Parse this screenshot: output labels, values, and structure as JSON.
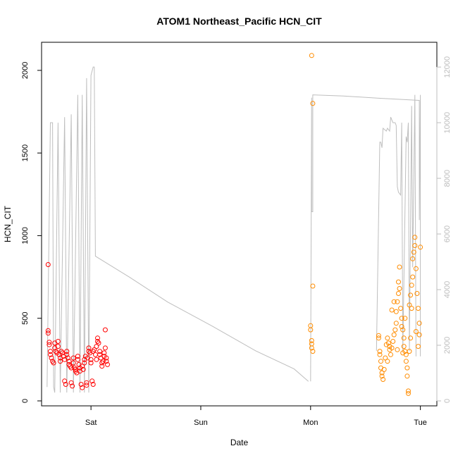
{
  "chart_data": {
    "type": "scatter",
    "title": "ATOM1 Northeast_Pacific HCN_CIT",
    "xlabel": "Date",
    "ylabel": "HCN_CIT",
    "x_ticks": [
      {
        "label": "Sat",
        "value": 1.0
      },
      {
        "label": "Sun",
        "value": 2.0
      },
      {
        "label": "Mon",
        "value": 3.0
      },
      {
        "label": "Tue",
        "value": 4.0
      }
    ],
    "xlim": [
      0.55,
      4.15
    ],
    "y_ticks": [
      0,
      500,
      1000,
      1500,
      2000
    ],
    "ylim": [
      -30,
      2170
    ],
    "y2_ticks": [
      0,
      2000,
      4000,
      6000,
      8000,
      10000,
      12000
    ],
    "y2lim": [
      -178,
      12890
    ],
    "grid": false,
    "colors": {
      "series1": "#ff0000",
      "series2": "#ff8c00",
      "secondary_line": "#bebebe",
      "right_axis": "#bdbdbd"
    },
    "series": [
      {
        "color": "#ff0000",
        "points": [
          [
            0.61,
            825
          ],
          [
            0.61,
            425
          ],
          [
            0.61,
            410
          ],
          [
            0.62,
            355
          ],
          [
            0.62,
            340
          ],
          [
            0.63,
            300
          ],
          [
            0.63,
            280
          ],
          [
            0.64,
            260
          ],
          [
            0.65,
            240
          ],
          [
            0.66,
            230
          ],
          [
            0.67,
            350
          ],
          [
            0.67,
            320
          ],
          [
            0.68,
            300
          ],
          [
            0.69,
            290
          ],
          [
            0.7,
            360
          ],
          [
            0.7,
            330
          ],
          [
            0.71,
            280
          ],
          [
            0.72,
            260
          ],
          [
            0.72,
            240
          ],
          [
            0.73,
            300
          ],
          [
            0.74,
            290
          ],
          [
            0.75,
            270
          ],
          [
            0.76,
            250
          ],
          [
            0.76,
            120
          ],
          [
            0.77,
            100
          ],
          [
            0.78,
            300
          ],
          [
            0.78,
            280
          ],
          [
            0.79,
            260
          ],
          [
            0.8,
            240
          ],
          [
            0.8,
            220
          ],
          [
            0.81,
            210
          ],
          [
            0.82,
            200
          ],
          [
            0.82,
            110
          ],
          [
            0.83,
            90
          ],
          [
            0.84,
            260
          ],
          [
            0.84,
            230
          ],
          [
            0.85,
            200
          ],
          [
            0.86,
            190
          ],
          [
            0.86,
            180
          ],
          [
            0.87,
            170
          ],
          [
            0.88,
            270
          ],
          [
            0.88,
            250
          ],
          [
            0.89,
            220
          ],
          [
            0.9,
            200
          ],
          [
            0.9,
            180
          ],
          [
            0.91,
            100
          ],
          [
            0.92,
            80
          ],
          [
            0.92,
            210
          ],
          [
            0.93,
            190
          ],
          [
            0.94,
            230
          ],
          [
            0.94,
            250
          ],
          [
            0.95,
            270
          ],
          [
            0.96,
            110
          ],
          [
            0.96,
            95
          ],
          [
            0.97,
            260
          ],
          [
            0.98,
            300
          ],
          [
            0.98,
            320
          ],
          [
            0.99,
            290
          ],
          [
            1.0,
            250
          ],
          [
            1.0,
            230
          ],
          [
            1.01,
            120
          ],
          [
            1.02,
            100
          ],
          [
            1.02,
            300
          ],
          [
            1.03,
            310
          ],
          [
            1.04,
            280
          ],
          [
            1.05,
            250
          ],
          [
            1.05,
            330
          ],
          [
            1.06,
            380
          ],
          [
            1.06,
            360
          ],
          [
            1.07,
            350
          ],
          [
            1.08,
            300
          ],
          [
            1.08,
            280
          ],
          [
            1.09,
            260
          ],
          [
            1.1,
            230
          ],
          [
            1.1,
            210
          ],
          [
            1.11,
            240
          ],
          [
            1.12,
            270
          ],
          [
            1.12,
            290
          ],
          [
            1.13,
            320
          ],
          [
            1.13,
            430
          ],
          [
            1.14,
            260
          ],
          [
            1.14,
            240
          ],
          [
            1.15,
            220
          ]
        ]
      },
      {
        "color": "#ff8c00",
        "points": [
          [
            3.01,
            2090
          ],
          [
            3.02,
            1800
          ],
          [
            3.02,
            695
          ],
          [
            3.0,
            455
          ],
          [
            3.0,
            430
          ],
          [
            3.01,
            365
          ],
          [
            3.01,
            345
          ],
          [
            3.01,
            320
          ],
          [
            3.02,
            300
          ],
          [
            3.62,
            395
          ],
          [
            3.62,
            380
          ],
          [
            3.63,
            300
          ],
          [
            3.63,
            280
          ],
          [
            3.64,
            240
          ],
          [
            3.64,
            200
          ],
          [
            3.65,
            170
          ],
          [
            3.65,
            150
          ],
          [
            3.66,
            130
          ],
          [
            3.67,
            190
          ],
          [
            3.68,
            260
          ],
          [
            3.69,
            340
          ],
          [
            3.7,
            380
          ],
          [
            3.71,
            350
          ],
          [
            3.72,
            310
          ],
          [
            3.73,
            280
          ],
          [
            3.74,
            320
          ],
          [
            3.75,
            360
          ],
          [
            3.76,
            400
          ],
          [
            3.77,
            430
          ],
          [
            3.78,
            470
          ],
          [
            3.78,
            540
          ],
          [
            3.79,
            600
          ],
          [
            3.8,
            650
          ],
          [
            3.8,
            720
          ],
          [
            3.81,
            810
          ],
          [
            3.81,
            680
          ],
          [
            3.82,
            560
          ],
          [
            3.83,
            500
          ],
          [
            3.84,
            430
          ],
          [
            3.85,
            380
          ],
          [
            3.85,
            330
          ],
          [
            3.86,
            300
          ],
          [
            3.87,
            280
          ],
          [
            3.87,
            240
          ],
          [
            3.88,
            200
          ],
          [
            3.88,
            150
          ],
          [
            3.89,
            60
          ],
          [
            3.89,
            45
          ],
          [
            3.9,
            300
          ],
          [
            3.9,
            580
          ],
          [
            3.91,
            640
          ],
          [
            3.92,
            700
          ],
          [
            3.93,
            750
          ],
          [
            3.93,
            860
          ],
          [
            3.94,
            900
          ],
          [
            3.95,
            940
          ],
          [
            3.95,
            990
          ],
          [
            3.96,
            800
          ],
          [
            3.97,
            650
          ],
          [
            3.98,
            560
          ],
          [
            3.99,
            470
          ],
          [
            3.99,
            400
          ],
          [
            4.0,
            930
          ],
          [
            3.74,
            550
          ],
          [
            3.76,
            600
          ],
          [
            3.83,
            450
          ],
          [
            3.86,
            500
          ],
          [
            3.92,
            560
          ],
          [
            3.7,
            240
          ],
          [
            3.72,
            330
          ],
          [
            3.79,
            310
          ],
          [
            3.84,
            290
          ],
          [
            3.91,
            380
          ],
          [
            3.96,
            420
          ],
          [
            3.98,
            330
          ]
        ]
      }
    ],
    "secondary_line": {
      "segments": [
        [
          [
            0.6,
            500
          ],
          [
            0.63,
            10000
          ],
          [
            0.65,
            10000
          ],
          [
            0.66,
            500
          ],
          [
            0.67,
            300
          ],
          [
            0.7,
            10000
          ],
          [
            0.72,
            300
          ],
          [
            0.76,
            10200
          ],
          [
            0.78,
            300
          ],
          [
            0.82,
            10300
          ],
          [
            0.84,
            300
          ],
          [
            0.88,
            11000
          ],
          [
            0.9,
            300
          ],
          [
            0.92,
            11000
          ],
          [
            0.94,
            300
          ],
          [
            0.96,
            11600
          ],
          [
            0.98,
            300
          ],
          [
            1.0,
            11700
          ],
          [
            1.02,
            12000
          ],
          [
            1.03,
            12000
          ],
          [
            1.04,
            5200
          ],
          [
            1.35,
            4450
          ],
          [
            1.7,
            3550
          ],
          [
            2.1,
            2700
          ],
          [
            2.5,
            1800
          ],
          [
            2.85,
            1150
          ],
          [
            2.98,
            700
          ]
        ],
        [
          [
            3.0,
            700
          ],
          [
            3.01,
            10900
          ],
          [
            3.01,
            6800
          ],
          [
            3.02,
            6800
          ],
          [
            3.02,
            11000
          ],
          [
            3.3,
            10960
          ],
          [
            3.62,
            10880
          ],
          [
            3.8,
            10840
          ],
          [
            3.99,
            10800
          ],
          [
            3.99,
            6500
          ],
          [
            4.0,
            11000
          ],
          [
            4.0,
            1600
          ]
        ],
        [
          [
            3.6,
            1800
          ],
          [
            3.63,
            9300
          ],
          [
            3.64,
            9300
          ],
          [
            3.65,
            9100
          ],
          [
            3.66,
            9800
          ],
          [
            3.69,
            9700
          ],
          [
            3.7,
            9800
          ],
          [
            3.72,
            9700
          ],
          [
            3.73,
            10200
          ],
          [
            3.74,
            10100
          ],
          [
            3.75,
            10000
          ],
          [
            3.77,
            10000
          ],
          [
            3.78,
            9900
          ],
          [
            3.79,
            7700
          ],
          [
            3.8,
            7500
          ],
          [
            3.82,
            7400
          ],
          [
            3.83,
            10000
          ],
          [
            3.84,
            1800
          ],
          [
            3.87,
            9500
          ],
          [
            3.88,
            9300
          ],
          [
            3.89,
            10000
          ],
          [
            3.9,
            1800
          ],
          [
            3.92,
            10600
          ],
          [
            3.93,
            4800
          ],
          [
            3.95,
            11000
          ],
          [
            3.96,
            1600
          ]
        ]
      ]
    }
  }
}
